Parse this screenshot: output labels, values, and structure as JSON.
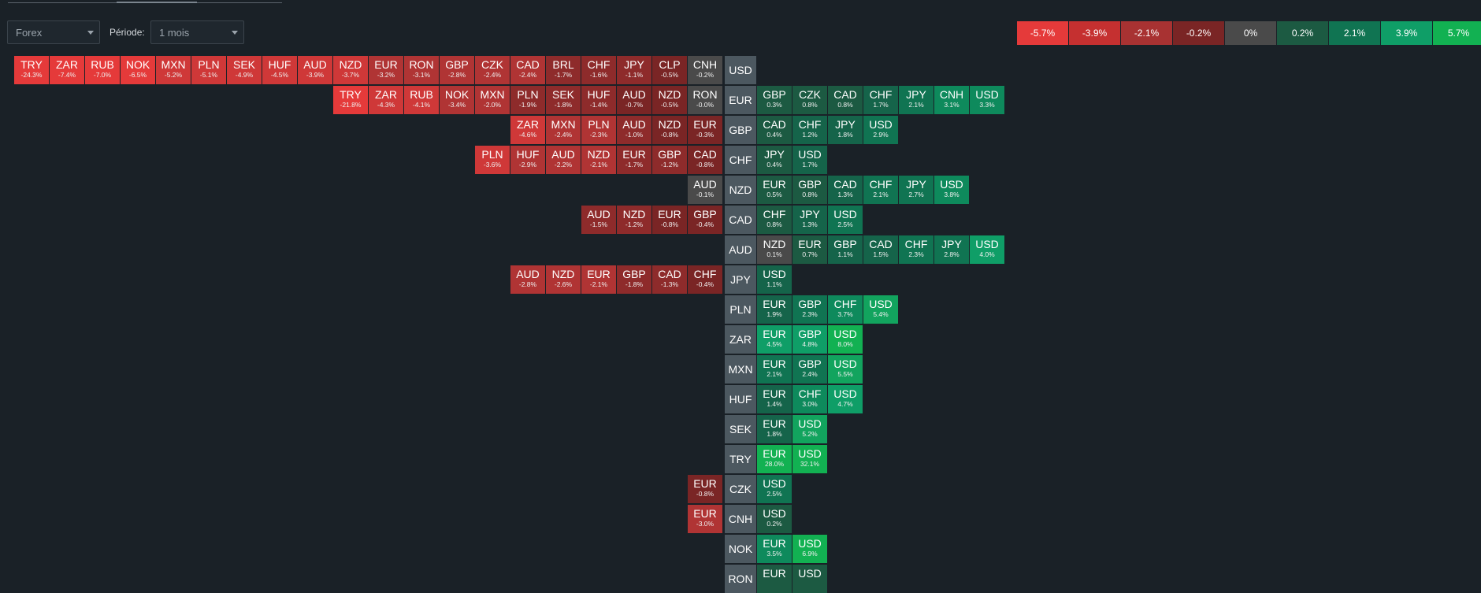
{
  "controls": {
    "market": "Forex",
    "period_label": "Période:",
    "period": "1 mois"
  },
  "legend": [
    {
      "label": "-5.7%",
      "color": "#e53a3a"
    },
    {
      "label": "-3.9%",
      "color": "#c53030"
    },
    {
      "label": "-2.1%",
      "color": "#a83232"
    },
    {
      "label": "-0.2%",
      "color": "#7a2525"
    },
    {
      "label": "0%",
      "color": "#4a4a4a"
    },
    {
      "label": "0.2%",
      "color": "#1c5a42"
    },
    {
      "label": "2.1%",
      "color": "#107452"
    },
    {
      "label": "3.9%",
      "color": "#0f9e67"
    },
    {
      "label": "5.7%",
      "color": "#12b152"
    }
  ],
  "rows": [
    {
      "base": "USD",
      "left": [
        [
          "TRY",
          "-24.3%"
        ],
        [
          "ZAR",
          "-7.4%"
        ],
        [
          "RUB",
          "-7.0%"
        ],
        [
          "NOK",
          "-6.5%"
        ],
        [
          "MXN",
          "-5.2%"
        ],
        [
          "PLN",
          "-5.1%"
        ],
        [
          "SEK",
          "-4.9%"
        ],
        [
          "HUF",
          "-4.5%"
        ],
        [
          "AUD",
          "-3.9%"
        ],
        [
          "NZD",
          "-3.7%"
        ],
        [
          "EUR",
          "-3.2%"
        ],
        [
          "RON",
          "-3.1%"
        ],
        [
          "GBP",
          "-2.8%"
        ],
        [
          "CZK",
          "-2.4%"
        ],
        [
          "CAD",
          "-2.4%"
        ],
        [
          "BRL",
          "-1.7%"
        ],
        [
          "CHF",
          "-1.6%"
        ],
        [
          "JPY",
          "-1.1%"
        ],
        [
          "CLP",
          "-0.5%"
        ],
        [
          "CNH",
          "-0.2%"
        ]
      ],
      "right": []
    },
    {
      "base": "EUR",
      "left": [
        [
          "TRY",
          "-21.8%"
        ],
        [
          "ZAR",
          "-4.3%"
        ],
        [
          "RUB",
          "-4.1%"
        ],
        [
          "NOK",
          "-3.4%"
        ],
        [
          "MXN",
          "-2.0%"
        ],
        [
          "PLN",
          "-1.9%"
        ],
        [
          "SEK",
          "-1.8%"
        ],
        [
          "HUF",
          "-1.4%"
        ],
        [
          "AUD",
          "-0.7%"
        ],
        [
          "NZD",
          "-0.5%"
        ],
        [
          "RON",
          "-0.0%"
        ]
      ],
      "right": [
        [
          "GBP",
          "0.3%"
        ],
        [
          "CZK",
          "0.8%"
        ],
        [
          "CAD",
          "0.8%"
        ],
        [
          "CHF",
          "1.7%"
        ],
        [
          "JPY",
          "2.1%"
        ],
        [
          "CNH",
          "3.1%"
        ],
        [
          "USD",
          "3.3%"
        ]
      ]
    },
    {
      "base": "GBP",
      "left": [
        [
          "ZAR",
          "-4.6%"
        ],
        [
          "MXN",
          "-2.4%"
        ],
        [
          "PLN",
          "-2.3%"
        ],
        [
          "AUD",
          "-1.0%"
        ],
        [
          "NZD",
          "-0.8%"
        ],
        [
          "EUR",
          "-0.3%"
        ]
      ],
      "right": [
        [
          "CAD",
          "0.4%"
        ],
        [
          "CHF",
          "1.2%"
        ],
        [
          "JPY",
          "1.8%"
        ],
        [
          "USD",
          "2.9%"
        ]
      ]
    },
    {
      "base": "CHF",
      "left": [
        [
          "PLN",
          "-3.6%"
        ],
        [
          "HUF",
          "-2.9%"
        ],
        [
          "AUD",
          "-2.2%"
        ],
        [
          "NZD",
          "-2.1%"
        ],
        [
          "EUR",
          "-1.7%"
        ],
        [
          "GBP",
          "-1.2%"
        ],
        [
          "CAD",
          "-0.8%"
        ]
      ],
      "right": [
        [
          "JPY",
          "0.4%"
        ],
        [
          "USD",
          "1.7%"
        ]
      ]
    },
    {
      "base": "NZD",
      "left": [
        [
          "AUD",
          "-0.1%"
        ]
      ],
      "right": [
        [
          "EUR",
          "0.5%"
        ],
        [
          "GBP",
          "0.8%"
        ],
        [
          "CAD",
          "1.3%"
        ],
        [
          "CHF",
          "2.1%"
        ],
        [
          "JPY",
          "2.7%"
        ],
        [
          "USD",
          "3.8%"
        ]
      ]
    },
    {
      "base": "CAD",
      "left": [
        [
          "AUD",
          "-1.5%"
        ],
        [
          "NZD",
          "-1.2%"
        ],
        [
          "EUR",
          "-0.8%"
        ],
        [
          "GBP",
          "-0.4%"
        ]
      ],
      "right": [
        [
          "CHF",
          "0.8%"
        ],
        [
          "JPY",
          "1.3%"
        ],
        [
          "USD",
          "2.5%"
        ]
      ]
    },
    {
      "base": "AUD",
      "left": [],
      "right": [
        [
          "NZD",
          "0.1%"
        ],
        [
          "EUR",
          "0.7%"
        ],
        [
          "GBP",
          "1.1%"
        ],
        [
          "CAD",
          "1.5%"
        ],
        [
          "CHF",
          "2.3%"
        ],
        [
          "JPY",
          "2.8%"
        ],
        [
          "USD",
          "4.0%"
        ]
      ]
    },
    {
      "base": "JPY",
      "left": [
        [
          "AUD",
          "-2.8%"
        ],
        [
          "NZD",
          "-2.6%"
        ],
        [
          "EUR",
          "-2.1%"
        ],
        [
          "GBP",
          "-1.8%"
        ],
        [
          "CAD",
          "-1.3%"
        ],
        [
          "CHF",
          "-0.4%"
        ]
      ],
      "right": [
        [
          "USD",
          "1.1%"
        ]
      ]
    },
    {
      "base": "PLN",
      "left": [],
      "right": [
        [
          "EUR",
          "1.9%"
        ],
        [
          "GBP",
          "2.3%"
        ],
        [
          "CHF",
          "3.7%"
        ],
        [
          "USD",
          "5.4%"
        ]
      ]
    },
    {
      "base": "ZAR",
      "left": [],
      "right": [
        [
          "EUR",
          "4.5%"
        ],
        [
          "GBP",
          "4.8%"
        ],
        [
          "USD",
          "8.0%"
        ]
      ]
    },
    {
      "base": "MXN",
      "left": [],
      "right": [
        [
          "EUR",
          "2.1%"
        ],
        [
          "GBP",
          "2.4%"
        ],
        [
          "USD",
          "5.5%"
        ]
      ]
    },
    {
      "base": "HUF",
      "left": [],
      "right": [
        [
          "EUR",
          "1.4%"
        ],
        [
          "CHF",
          "3.0%"
        ],
        [
          "USD",
          "4.7%"
        ]
      ]
    },
    {
      "base": "SEK",
      "left": [],
      "right": [
        [
          "EUR",
          "1.8%"
        ],
        [
          "USD",
          "5.2%"
        ]
      ]
    },
    {
      "base": "TRY",
      "left": [],
      "right": [
        [
          "EUR",
          "28.0%"
        ],
        [
          "USD",
          "32.1%"
        ]
      ]
    },
    {
      "base": "CZK",
      "left": [
        [
          "EUR",
          "-0.8%"
        ]
      ],
      "right": [
        [
          "USD",
          "2.5%"
        ]
      ]
    },
    {
      "base": "CNH",
      "left": [
        [
          "EUR",
          "-3.0%"
        ]
      ],
      "right": [
        [
          "USD",
          "0.2%"
        ]
      ]
    },
    {
      "base": "NOK",
      "left": [],
      "right": [
        [
          "EUR",
          "3.5%"
        ],
        [
          "USD",
          "6.9%"
        ]
      ]
    },
    {
      "base": "RON",
      "left": [],
      "right": [
        [
          "EUR",
          ""
        ],
        [
          "USD",
          ""
        ]
      ]
    }
  ]
}
